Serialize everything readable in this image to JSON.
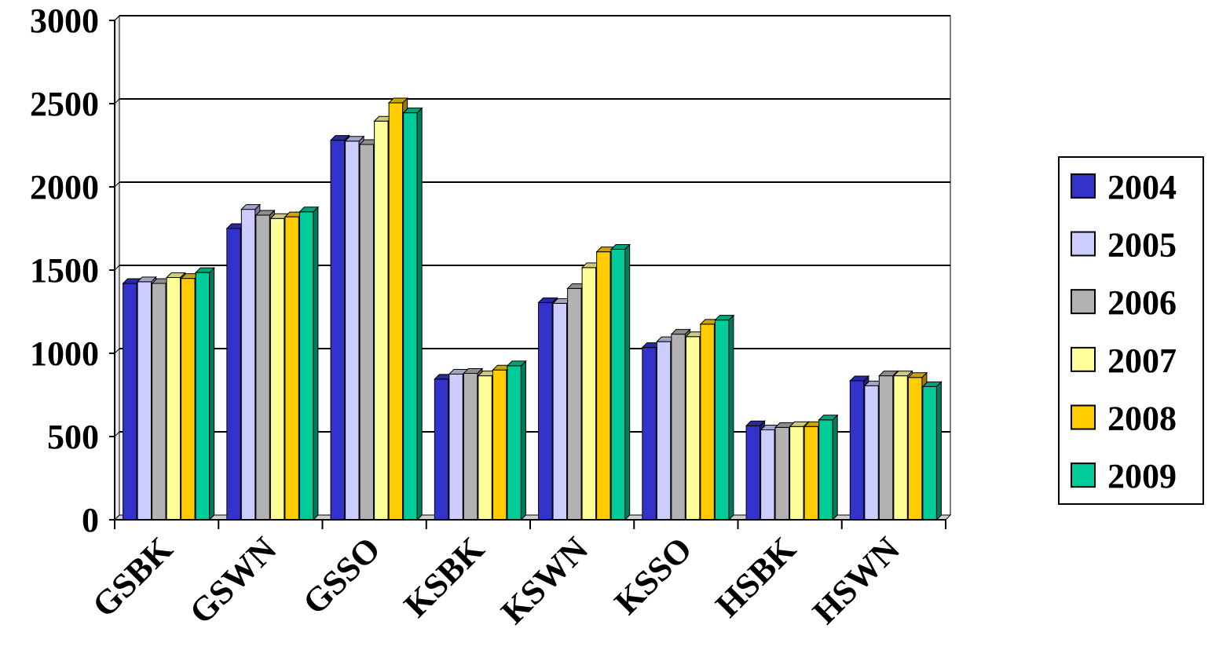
{
  "chart_data": {
    "type": "bar",
    "title": "",
    "xlabel": "",
    "ylabel": "",
    "ylim": [
      0,
      3000
    ],
    "yticks": [
      0,
      500,
      1000,
      1500,
      2000,
      2500,
      3000
    ],
    "grid": "horizontal",
    "legend_position": "right",
    "categories": [
      "GSBK",
      "GSWN",
      "GSSO",
      "KSBK",
      "KSWN",
      "KSSO",
      "HSBK",
      "HSWN"
    ],
    "series": [
      {
        "name": "2004",
        "color": "#3333CC",
        "values": [
          1420,
          1750,
          2280,
          845,
          1305,
          1035,
          565,
          835
        ]
      },
      {
        "name": "2005",
        "color": "#CCCCFF",
        "values": [
          1430,
          1865,
          2275,
          875,
          1300,
          1070,
          540,
          805
        ]
      },
      {
        "name": "2006",
        "color": "#B2B2B2",
        "values": [
          1420,
          1830,
          2255,
          880,
          1390,
          1115,
          555,
          865
        ]
      },
      {
        "name": "2007",
        "color": "#FFFF99",
        "values": [
          1455,
          1810,
          2395,
          865,
          1515,
          1100,
          560,
          865
        ]
      },
      {
        "name": "2008",
        "color": "#FFCC00",
        "values": [
          1450,
          1820,
          2505,
          900,
          1610,
          1175,
          560,
          855
        ]
      },
      {
        "name": "2009",
        "color": "#00CC99",
        "values": [
          1485,
          1850,
          2445,
          925,
          1625,
          1200,
          600,
          800
        ]
      }
    ]
  }
}
